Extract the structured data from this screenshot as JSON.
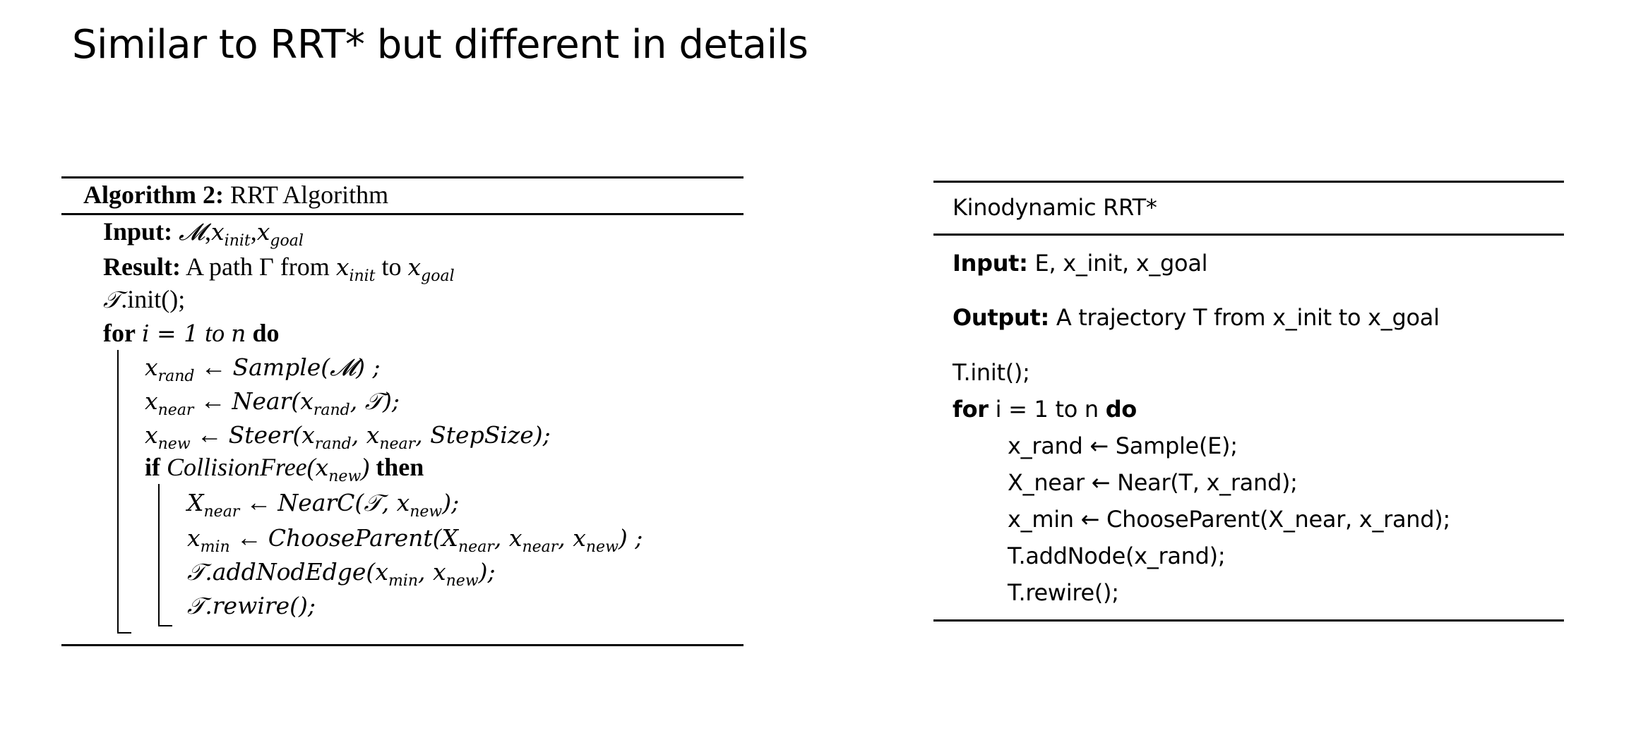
{
  "slide": {
    "title": "Similar to RRT* but different in details"
  },
  "left_algorithm": {
    "header_label": "Algorithm 2:",
    "header_title": "RRT Algorithm",
    "input_label": "Input:",
    "input_M": "𝓜",
    "x": "x",
    "init": "init",
    "goal": "goal",
    "comma": ",",
    "result_label": "Result:",
    "result_text_1": "A path Γ from",
    "result_text_2": "to",
    "tree": "𝒯",
    "init_call": ".init();",
    "for_kw": "for",
    "for_expr": "i = 1",
    "to_kw": "to",
    "n": "n",
    "do_kw": "do",
    "rand": "rand",
    "near": "near",
    "new": "new",
    "min": "min",
    "arrow": "←",
    "line_sample": "Sample(𝓜) ;",
    "line_near_fn": "Near(",
    "line_near_end": ");",
    "line_steer_fn": "Steer(",
    "line_steer_end": ", StepSize);",
    "if_kw": "if",
    "collision_fn": "CollisionFree(",
    "then_kw": "then",
    "Xcap": "X",
    "nearc_fn": "NearC(",
    "choose_fn": "ChooseParent(",
    "addedge_fn": ".addNodEdge(",
    "rewire_fn": ".rewire();",
    "close_paren_semi": ");",
    "close_paren_semi_sp": ") ;",
    "close_paren": ")"
  },
  "right_algorithm": {
    "title": "Kinodynamic RRT*",
    "input_label": "Input:",
    "input_text": " E, x_init, x_goal",
    "output_label": "Output:",
    "output_text": " A trajectory T from x_init to x_goal",
    "line_init": "T.init();",
    "for_kw": "for",
    "for_mid": " i = 1 to n ",
    "do_kw": "do",
    "body": [
      "x_rand ← Sample(E);",
      "X_near ← Near(T, x_rand);",
      "x_min ← ChooseParent(X_near, x_rand);",
      "T.addNode(x_rand);",
      "T.rewire();"
    ]
  }
}
